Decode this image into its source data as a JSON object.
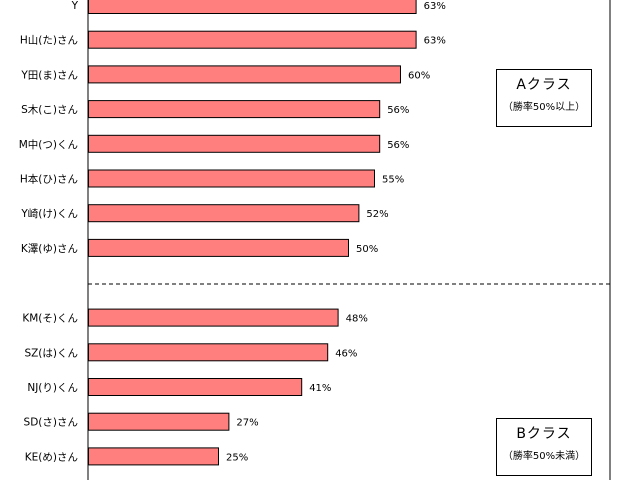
{
  "chart_data": {
    "type": "bar",
    "orientation": "horizontal",
    "categories": [
      "Y",
      "H山(た)さん",
      "Y田(ま)さん",
      "S木(こ)さん",
      "M中(つ)くん",
      "H本(ひ)さん",
      "Y崎(け)くん",
      "K澤(ゆ)さん",
      "KM(そ)くん",
      "SZ(は)くん",
      "NJ(り)くん",
      "SD(さ)さん",
      "KE(め)さん"
    ],
    "values": [
      63,
      63,
      60,
      56,
      56,
      55,
      52,
      50,
      48,
      46,
      41,
      27,
      25
    ],
    "value_labels": [
      "63%",
      "63%",
      "60%",
      "56%",
      "56%",
      "55%",
      "52%",
      "50%",
      "48%",
      "46%",
      "41%",
      "27%",
      "25%"
    ],
    "xlim": [
      0,
      100
    ],
    "bar_color": "#ff7f7f",
    "grid": false,
    "groups": [
      {
        "title": "Aクラス",
        "subtitle": "（勝率50%以上）",
        "count": 8
      },
      {
        "title": "Bクラス",
        "subtitle": "（勝率50%未満）",
        "count": 5
      }
    ]
  }
}
